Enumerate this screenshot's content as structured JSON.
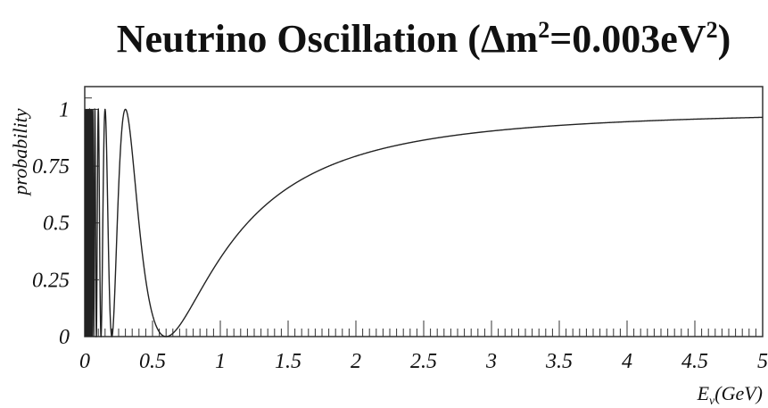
{
  "chart_data": {
    "type": "line",
    "title": {
      "main": "Neutrino Oscillation (",
      "delta": "Δm",
      "sup1": "2",
      "mid": "=0.003eV",
      "sup2": "2",
      "close": ")"
    },
    "ylabel": "probability",
    "xlabel": {
      "main": "E",
      "sub": "ν",
      "unit": "(GeV)"
    },
    "xlim": [
      0,
      5
    ],
    "ylim": [
      0,
      1.1
    ],
    "x_ticks": [
      {
        "value": 0,
        "label": "0"
      },
      {
        "value": 0.5,
        "label": "0.5"
      },
      {
        "value": 1,
        "label": "1"
      },
      {
        "value": 1.5,
        "label": "1.5"
      },
      {
        "value": 2,
        "label": "2"
      },
      {
        "value": 2.5,
        "label": "2.5"
      },
      {
        "value": 3,
        "label": "3"
      },
      {
        "value": 3.5,
        "label": "3.5"
      },
      {
        "value": 4,
        "label": "4"
      },
      {
        "value": 4.5,
        "label": "4.5"
      },
      {
        "value": 5,
        "label": "5"
      }
    ],
    "y_ticks": [
      {
        "value": 0,
        "label": "0"
      },
      {
        "value": 0.25,
        "label": "0.25"
      },
      {
        "value": 0.5,
        "label": "0.5"
      },
      {
        "value": 0.75,
        "label": "0.75"
      },
      {
        "value": 1,
        "label": "1"
      }
    ],
    "series": [
      {
        "function": "P(E) = 1 - sin^2(k / E), E in GeV",
        "k": 0.9425,
        "x_range": [
          0.003,
          5
        ]
      }
    ],
    "grid": false,
    "legend": "none",
    "colors": {
      "line": "#222222",
      "axis": "#333333",
      "background": "#ffffff"
    }
  }
}
